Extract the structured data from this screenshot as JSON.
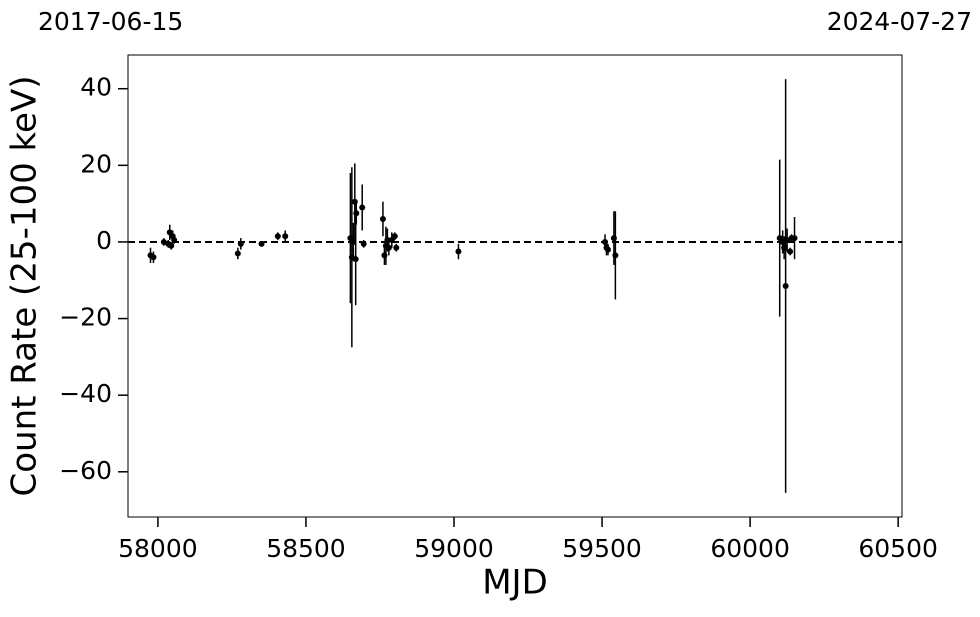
{
  "chart_data": {
    "type": "errorbar",
    "xlabel": "MJD",
    "ylabel": "Count Rate (25-100 keV)",
    "annotations": [
      "2017-06-15",
      "2024-07-27"
    ],
    "color": "#000000",
    "reference_line": 0,
    "xlim": [
      57899,
      60513
    ],
    "ylim": [
      -71.8,
      48.8
    ],
    "xticks": [
      58000,
      58500,
      59000,
      59500,
      60000,
      60500
    ],
    "yticks": [
      {
        "value": -60,
        "label": "−60"
      },
      {
        "value": -40,
        "label": "−40"
      },
      {
        "value": -20,
        "label": "−20"
      },
      0,
      20,
      40
    ],
    "x": [
      57975,
      57985,
      58020,
      58035,
      58040,
      58045,
      58050,
      58055,
      58270,
      58280,
      58350,
      58405,
      58430,
      58650,
      58655,
      58660,
      58665,
      58668,
      58670,
      58690,
      58695,
      58760,
      58765,
      58770,
      58775,
      58780,
      58790,
      58800,
      58805,
      59015,
      59510,
      59515,
      59520,
      59540,
      59545,
      60100,
      60110,
      60115,
      60120,
      60125,
      60135,
      60140,
      60150
    ],
    "values": [
      -3.5,
      -4,
      0,
      -0.5,
      2.5,
      -1,
      1.5,
      0.5,
      -3,
      -0.5,
      -0.5,
      1.5,
      1.5,
      1,
      -4,
      0,
      10.5,
      -4.5,
      7.5,
      9,
      -0.5,
      6,
      -3.5,
      -1,
      0.5,
      -1.5,
      0.5,
      1.5,
      -1.5,
      -2.5,
      0,
      -1.5,
      -2,
      1,
      -3.5,
      1,
      0,
      -1.5,
      -11.5,
      0.5,
      -2.5,
      1,
      1
    ],
    "errors": [
      2,
      1.5,
      1,
      1,
      2,
      1,
      1.5,
      1,
      1.5,
      1.5,
      0.5,
      1,
      1.5,
      17,
      23.5,
      5,
      10,
      12,
      3,
      6,
      1,
      4.5,
      2.5,
      5,
      3,
      2,
      2,
      1,
      1,
      2,
      2,
      2,
      1.5,
      7,
      11.5,
      20.5,
      3,
      3,
      54,
      3,
      1,
      1,
      5.5
    ]
  }
}
